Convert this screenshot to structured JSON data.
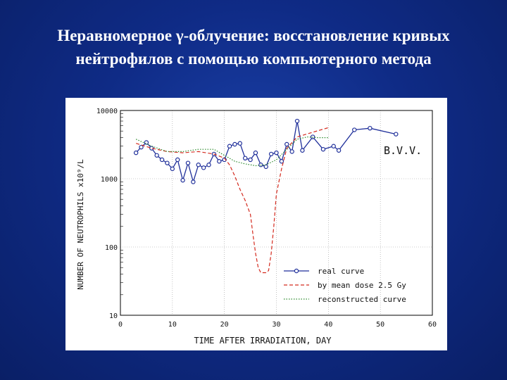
{
  "slide": {
    "title_line1": "Неравномерное γ-облучение: восстановление кривых",
    "title_line2": "нейтрофилов с помощью компьютерного метода"
  },
  "chart_data": {
    "type": "line",
    "title": "",
    "annotation": "B.V.V.",
    "xlabel": "TIME AFTER IRRADIATION, DAY",
    "ylabel": "NUMBER OF NEUTROPHILS x10⁹/L",
    "xlim": [
      0,
      60
    ],
    "ylim": [
      10,
      10000
    ],
    "yscale": "log",
    "x_ticks": [
      0,
      10,
      20,
      30,
      40,
      50,
      60
    ],
    "y_ticks": [
      10,
      100,
      1000,
      10000
    ],
    "x_tick_labels": [
      "0",
      "10",
      "20",
      "30",
      "40",
      "50",
      "60"
    ],
    "y_tick_labels": [
      "10",
      "100",
      "1000",
      "10000"
    ],
    "grid": true,
    "legend_position": "bottom-right",
    "series": [
      {
        "name": "real curve",
        "color": "#1f2f9a",
        "style": "solid-markers",
        "x": [
          3,
          4,
          5,
          6,
          7,
          8,
          9,
          10,
          11,
          12,
          13,
          14,
          15,
          16,
          17,
          18,
          19,
          20,
          21,
          22,
          23,
          24,
          25,
          26,
          27,
          28,
          29,
          30,
          31,
          32,
          33,
          34,
          35,
          37,
          39,
          41,
          42,
          45,
          48,
          53
        ],
        "y": [
          2400,
          2900,
          3400,
          2800,
          2200,
          1900,
          1700,
          1400,
          1900,
          950,
          1700,
          900,
          1600,
          1450,
          1600,
          2300,
          1800,
          1900,
          3000,
          3200,
          3300,
          2000,
          1900,
          2400,
          1600,
          1500,
          2300,
          2400,
          1800,
          3200,
          2500,
          7000,
          2600,
          4100,
          2700,
          3000,
          2600,
          5200,
          5500,
          4500
        ]
      },
      {
        "name": "by mean dose 2.5 Gy",
        "color": "#d42a1e",
        "style": "dashed",
        "x": [
          3,
          6,
          9,
          12,
          15,
          18,
          20,
          21,
          22,
          23,
          24,
          25,
          25.5,
          26,
          26.5,
          27,
          28,
          28.5,
          29,
          29.5,
          30,
          31,
          32,
          34,
          37,
          40
        ],
        "y": [
          3300,
          2800,
          2500,
          2400,
          2500,
          2300,
          2000,
          1600,
          1100,
          700,
          480,
          300,
          150,
          80,
          50,
          42,
          42,
          45,
          80,
          200,
          600,
          1400,
          2800,
          4100,
          4800,
          5600
        ]
      },
      {
        "name": "reconstructed curve",
        "color": "#2e8b2e",
        "style": "dotted",
        "x": [
          3,
          6,
          9,
          12,
          15,
          18,
          20,
          22,
          24,
          26,
          28,
          30,
          32,
          34,
          36,
          38,
          40
        ],
        "y": [
          3800,
          3000,
          2500,
          2500,
          2700,
          2700,
          2200,
          1800,
          1650,
          1550,
          1600,
          1900,
          2700,
          3800,
          4100,
          4000,
          4000
        ]
      }
    ]
  }
}
